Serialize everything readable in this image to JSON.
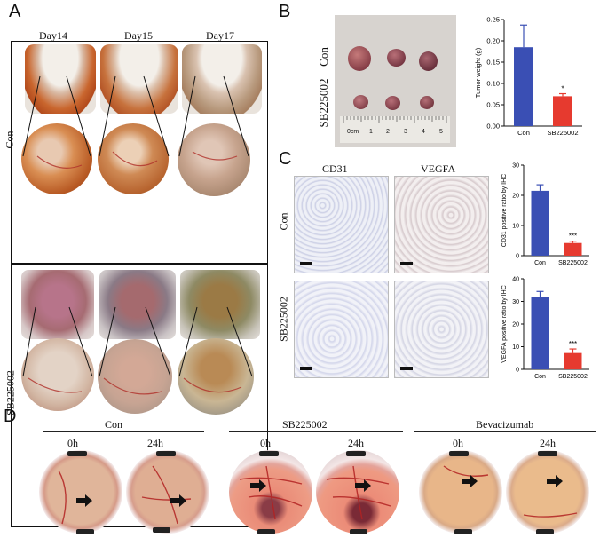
{
  "panels": {
    "a": "A",
    "b": "B",
    "c": "C",
    "d": "D"
  },
  "panel_a": {
    "days": [
      "Day14",
      "Day15",
      "Day17"
    ],
    "rows": [
      "Con",
      "SB225002"
    ]
  },
  "panel_b": {
    "rows": [
      "Con",
      "SB225002"
    ],
    "ruler": {
      "labels": [
        "0cm",
        "1",
        "2",
        "3",
        "4",
        "5"
      ]
    }
  },
  "panel_c": {
    "columns": [
      "CD31",
      "VEGFA"
    ],
    "rows": [
      "Con",
      "SB225002"
    ]
  },
  "panel_d": {
    "groups": [
      {
        "name": "Con",
        "times": [
          "0h",
          "24h"
        ]
      },
      {
        "name": "SB225002",
        "times": [
          "0h",
          "24h"
        ]
      },
      {
        "name": "Bevacizumab",
        "times": [
          "0h",
          "24h"
        ]
      }
    ]
  },
  "colors": {
    "con": "#3a4fb4",
    "sb": "#e63a2f"
  },
  "chart_data": [
    {
      "type": "bar",
      "categories": [
        "Con",
        "SB225002"
      ],
      "values": [
        0.185,
        0.07
      ],
      "errors": [
        0.052,
        0.006
      ],
      "significance": [
        "",
        "*"
      ],
      "ylabel": "Tumor weight (g)",
      "ylim": [
        0,
        0.25
      ],
      "yticks": [
        "0.00",
        "0.05",
        "0.10",
        "0.15",
        "0.20",
        "0.25"
      ],
      "ytick_values": [
        0,
        0.05,
        0.1,
        0.15,
        0.2,
        0.25
      ]
    },
    {
      "type": "bar",
      "categories": [
        "Con",
        "SB225002"
      ],
      "values": [
        21.5,
        4.2
      ],
      "errors": [
        2.0,
        0.6
      ],
      "significance": [
        "",
        "***"
      ],
      "ylabel": "CD31 positive ratio by IHC",
      "ylim": [
        0,
        30
      ],
      "yticks": [
        "0",
        "10",
        "20",
        "30"
      ],
      "ytick_values": [
        0,
        10,
        20,
        30
      ]
    },
    {
      "type": "bar",
      "categories": [
        "Con",
        "SB225002"
      ],
      "values": [
        31.8,
        7.2
      ],
      "errors": [
        2.6,
        1.8
      ],
      "significance": [
        "",
        "***"
      ],
      "ylabel": "VEGFA positive ratio by IHC",
      "ylim": [
        0,
        40
      ],
      "yticks": [
        "0",
        "10",
        "20",
        "30",
        "40"
      ],
      "ytick_values": [
        0,
        10,
        20,
        30,
        40
      ]
    }
  ]
}
